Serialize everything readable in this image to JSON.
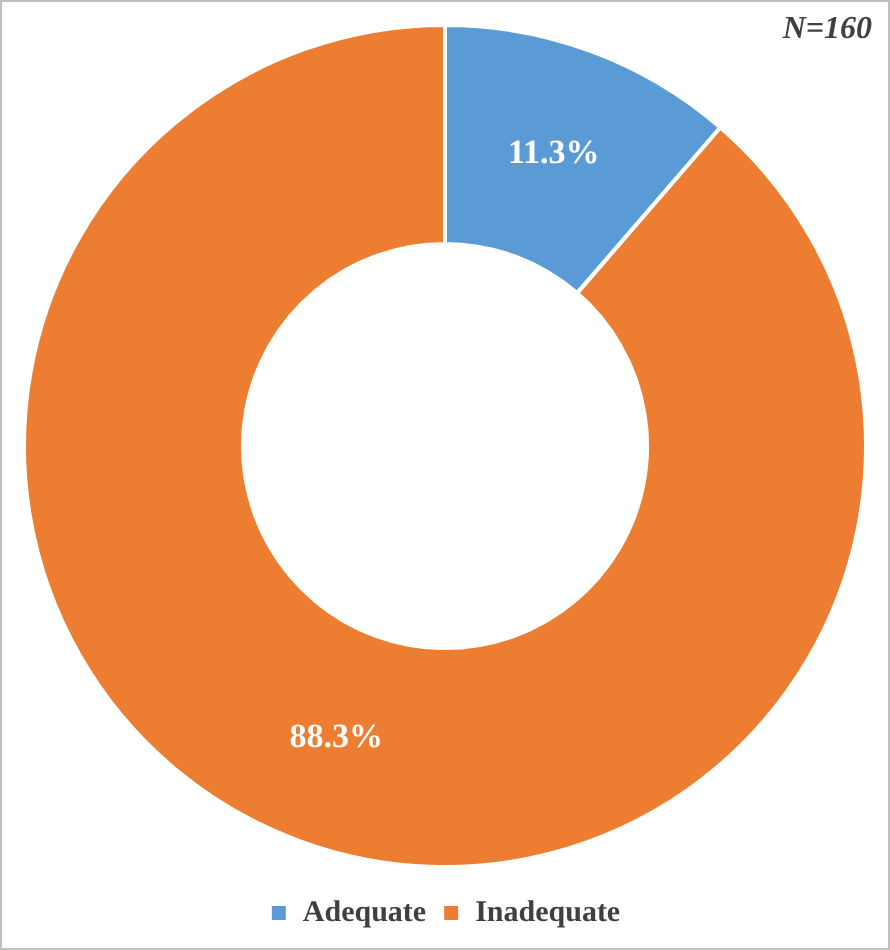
{
  "chart_data": {
    "type": "donut",
    "categories": [
      "Adequate",
      "Inadequate"
    ],
    "values": [
      11.3,
      88.3
    ],
    "colors": [
      "#5b9bd5",
      "#ed7d31"
    ],
    "data_labels": true,
    "value_labels": [
      "11.3%",
      "88.3%"
    ],
    "legend": "bottom",
    "annotations": [
      "N=160"
    ]
  }
}
